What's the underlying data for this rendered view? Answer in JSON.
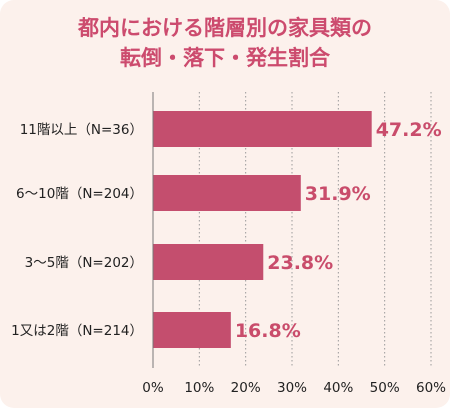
{
  "colors": {
    "title": "#cc4b6e",
    "bar": "#c44e6e",
    "value_label": "#c94c6b",
    "background": "#fcf1ec"
  },
  "chart_data": {
    "type": "bar",
    "orientation": "horizontal",
    "title_lines": [
      "都内における階層別の家具類の",
      "転倒・落下・発生割合"
    ],
    "categories": [
      "11階以上（N=36）",
      "6～10階（N=204）",
      "3～5階（N=202）",
      "1又は2階（N=214）"
    ],
    "values": [
      47.2,
      31.9,
      23.8,
      16.8
    ],
    "value_labels": [
      "47.2%",
      "31.9%",
      "23.8%",
      "16.8%"
    ],
    "x_ticks": [
      "0%",
      "10%",
      "20%",
      "30%",
      "40%",
      "50%",
      "60%"
    ],
    "xlim": [
      0,
      60
    ],
    "grid": true,
    "xlabel": "",
    "ylabel": ""
  }
}
